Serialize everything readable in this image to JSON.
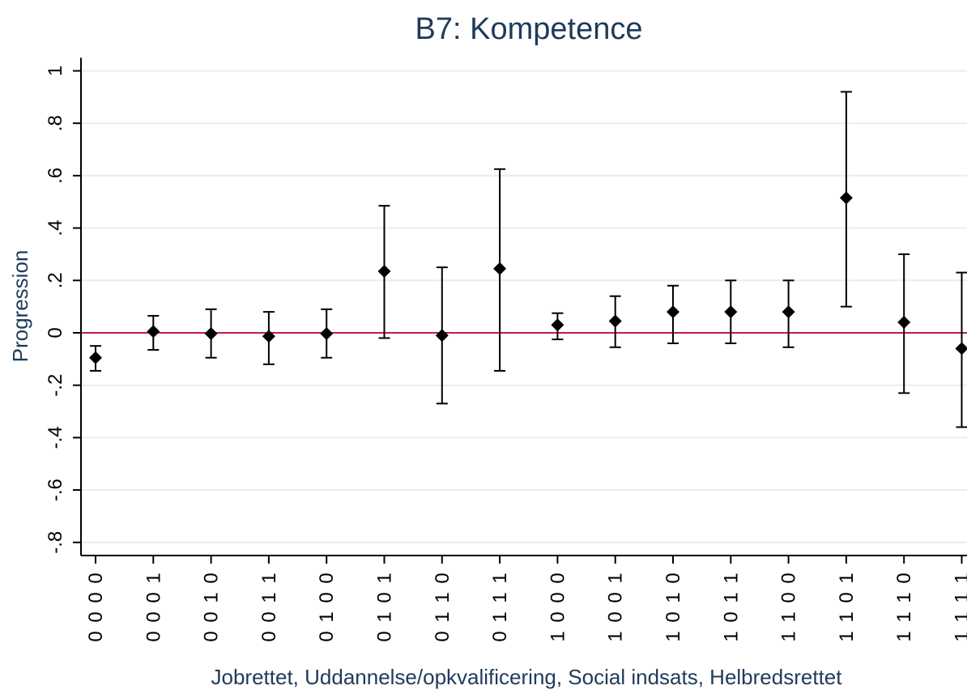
{
  "chart_data": {
    "type": "scatter",
    "title": "B7: Kompetence",
    "xlabel": "Jobrettet, Uddannelse/opkvalificering, Social indsats, Helbredsrettet",
    "ylabel": "Progression",
    "ylim": [
      -0.85,
      1.05
    ],
    "yticks": [
      1,
      0.8,
      0.6,
      0.4,
      0.2,
      0,
      -0.2,
      -0.4,
      -0.6,
      -0.8
    ],
    "ytick_labels": [
      "1",
      ".8",
      ".6",
      ".4",
      ".2",
      "0",
      "-.2",
      "-.4",
      "-.6",
      "-.8"
    ],
    "grid": true,
    "reference_line": {
      "y": 0,
      "color": "#c2185b"
    },
    "categories": [
      "0 0 0 0",
      "0 0 0 1",
      "0 0 1 0",
      "0 0 1 1",
      "0 1 0 0",
      "0 1 0 1",
      "0 1 1 0",
      "0 1 1 1",
      "1 0 0 0",
      "1 0 0 1",
      "1 0 1 0",
      "1 0 1 1",
      "1 1 0 0",
      "1 1 0 1",
      "1 1 1 0",
      "1 1 1 1"
    ],
    "estimate": [
      -0.095,
      0.005,
      -0.003,
      -0.013,
      -0.003,
      0.235,
      -0.01,
      0.245,
      0.03,
      0.045,
      0.08,
      0.08,
      0.08,
      0.515,
      0.04,
      -0.06
    ],
    "lower": [
      -0.145,
      -0.065,
      -0.095,
      -0.12,
      -0.095,
      -0.02,
      -0.27,
      -0.145,
      -0.025,
      -0.055,
      -0.04,
      -0.04,
      -0.055,
      0.1,
      -0.23,
      -0.36
    ],
    "upper": [
      -0.05,
      0.065,
      0.09,
      0.08,
      0.09,
      0.485,
      0.25,
      0.625,
      0.075,
      0.14,
      0.18,
      0.2,
      0.2,
      0.92,
      0.3,
      0.23
    ]
  }
}
